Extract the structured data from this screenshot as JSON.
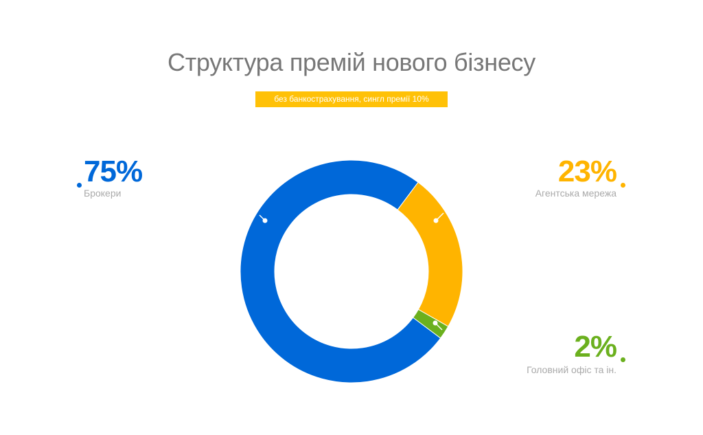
{
  "header": {
    "title": "Структура премій нового бізнесу",
    "subtitle_badge": "без банкострахування, сингл премії 10%"
  },
  "legend": [
    {
      "percent": "75%",
      "label": "Брокери",
      "color": "#0068d9"
    },
    {
      "percent": "23%",
      "label": "Агентська мережа",
      "color": "#ffb400"
    },
    {
      "percent": "2%",
      "label": "Головний офіс та ін.",
      "color": "#6bb01e"
    }
  ],
  "chart_data": {
    "type": "pie",
    "subtype": "donut",
    "title": "Структура премій нового бізнесу",
    "subtitle": "без банкострахування, сингл премії 10%",
    "categories": [
      "Брокери",
      "Агентська мережа",
      "Головний офіс та ін."
    ],
    "values": [
      75,
      23,
      2
    ],
    "unit": "%",
    "colors": [
      "#0068d9",
      "#ffb400",
      "#6bb01e"
    ],
    "legend_position": "around"
  }
}
